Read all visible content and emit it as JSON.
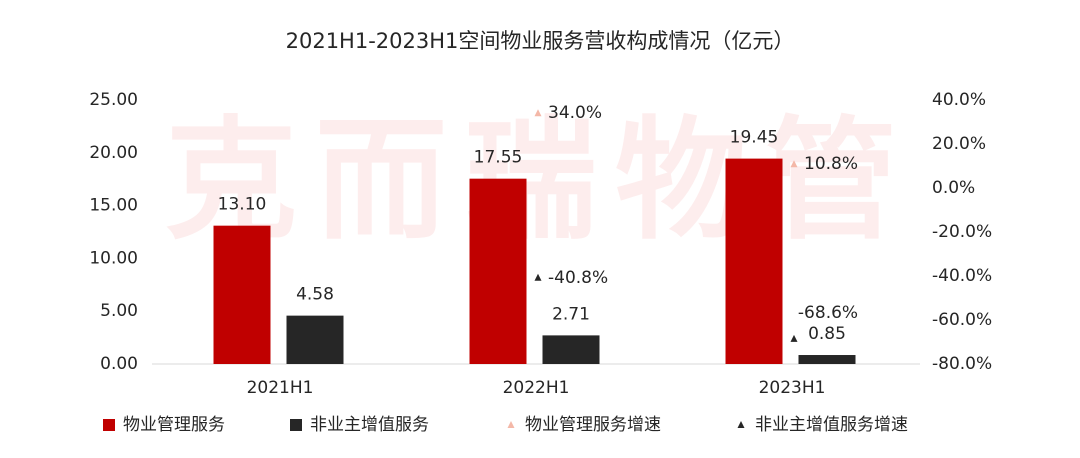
{
  "chart_data": {
    "type": "bar",
    "title": "2021H1-2023H1空间物业服务营收构成情况（亿元）",
    "watermark": "克而瑞物管",
    "categories": [
      "2021H1",
      "2022H1",
      "2023H1"
    ],
    "series": [
      {
        "name": "物业管理服务",
        "color": "#c00000",
        "values": [
          13.1,
          17.55,
          19.45
        ],
        "value_labels": [
          "13.10",
          "17.55",
          "19.45"
        ]
      },
      {
        "name": "非业主增值服务",
        "color": "#262626",
        "values": [
          4.58,
          2.71,
          0.85
        ],
        "value_labels": [
          "4.58",
          "2.71",
          "0.85"
        ]
      },
      {
        "name": "物业管理服务增速",
        "color": "#f4b8a8",
        "marker": "triangle",
        "axis": "y2",
        "values": [
          null,
          34.0,
          10.8
        ],
        "value_labels": [
          null,
          "34.0%",
          "10.8%"
        ]
      },
      {
        "name": "非业主增值服务增速",
        "color": "#262626",
        "marker": "triangle",
        "axis": "y2",
        "values": [
          null,
          -40.8,
          -68.6
        ],
        "value_labels": [
          null,
          "-40.8%",
          "-68.6%"
        ]
      }
    ],
    "ylim": [
      0,
      25
    ],
    "yticks": [
      {
        "value": 0,
        "label": "0.00"
      },
      {
        "value": 5,
        "label": "5.00"
      },
      {
        "value": 10,
        "label": "10.00"
      },
      {
        "value": 15,
        "label": "15.00"
      },
      {
        "value": 20,
        "label": "20.00"
      },
      {
        "value": 25,
        "label": "25.00"
      }
    ],
    "y2lim": [
      -80,
      40
    ],
    "y2ticks": [
      {
        "value": -80,
        "label": "-80.0%"
      },
      {
        "value": -60,
        "label": "-60.0%"
      },
      {
        "value": -40,
        "label": "-40.0%"
      },
      {
        "value": -20,
        "label": "-20.0%"
      },
      {
        "value": 0,
        "label": "0.0%"
      },
      {
        "value": 20,
        "label": "20.0%"
      },
      {
        "value": 40,
        "label": "40.0%"
      }
    ],
    "grid": false,
    "legend": "bottom"
  }
}
